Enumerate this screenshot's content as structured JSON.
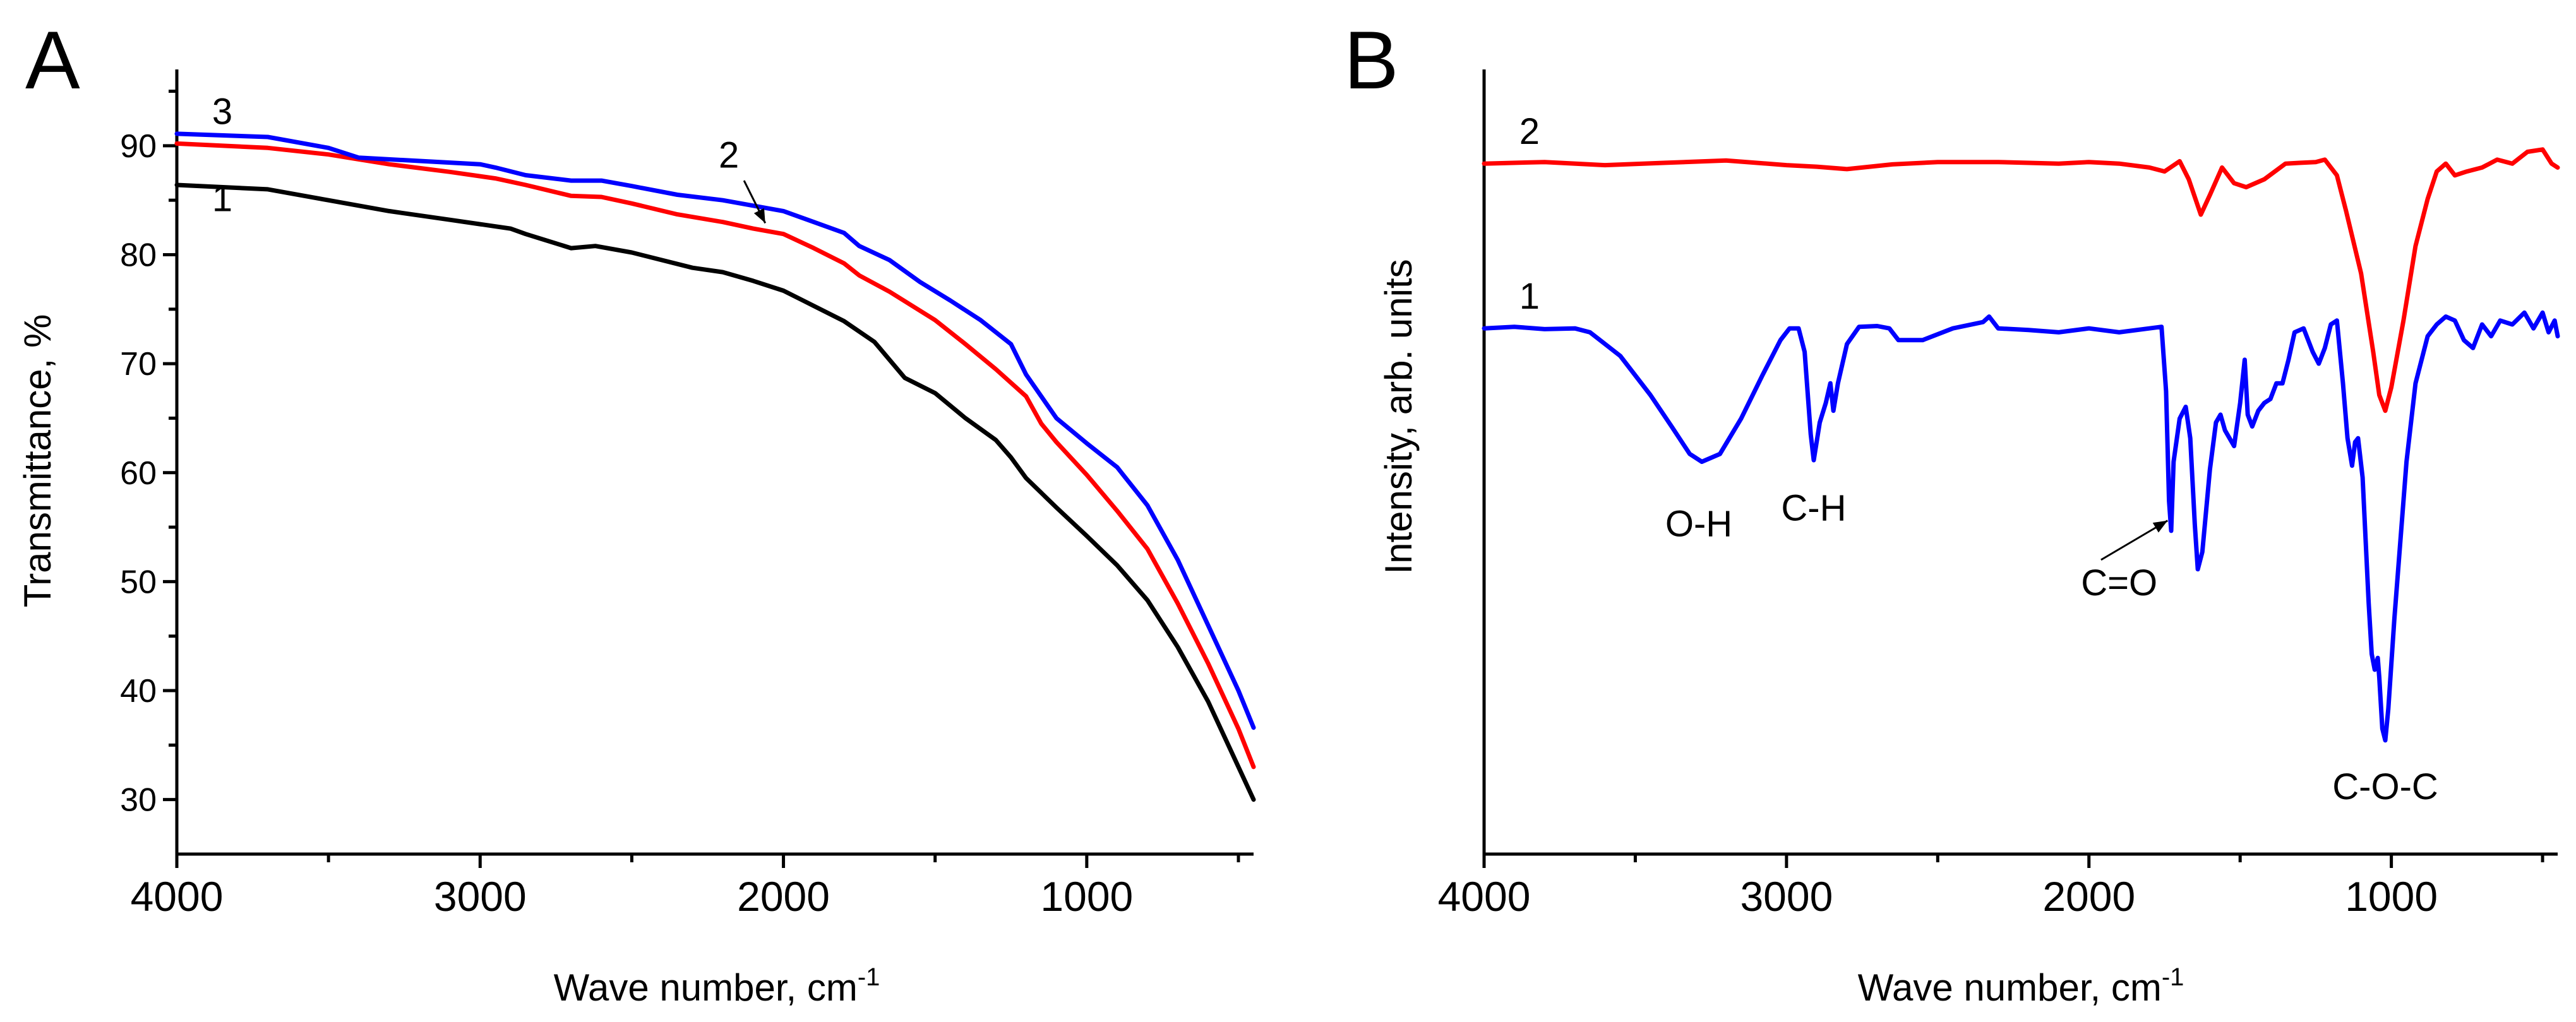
{
  "chart_data": [
    {
      "type": "line",
      "panel": "A",
      "title": "",
      "xlabel": "Wave number, cm",
      "xlabel_sup": "-1",
      "ylabel": "Transmittance, %",
      "xlim": [
        4000,
        450
      ],
      "ylim": [
        25,
        97
      ],
      "xticks": [
        4000,
        3000,
        2000,
        1000
      ],
      "yticks": [
        30,
        40,
        50,
        60,
        70,
        80,
        90
      ],
      "series": [
        {
          "name": "1",
          "color": "#000000",
          "points": [
            [
              4000,
              86.4
            ],
            [
              3700,
              86.0
            ],
            [
              3500,
              85.0
            ],
            [
              3300,
              84.0
            ],
            [
              3100,
              83.2
            ],
            [
              2900,
              82.4
            ],
            [
              2850,
              81.9
            ],
            [
              2700,
              80.6
            ],
            [
              2620,
              80.8
            ],
            [
              2500,
              80.2
            ],
            [
              2300,
              78.8
            ],
            [
              2200,
              78.4
            ],
            [
              2100,
              77.6
            ],
            [
              2000,
              76.7
            ],
            [
              1900,
              75.3
            ],
            [
              1800,
              73.9
            ],
            [
              1700,
              72.0
            ],
            [
              1600,
              68.7
            ],
            [
              1500,
              67.3
            ],
            [
              1400,
              65.0
            ],
            [
              1300,
              63.0
            ],
            [
              1250,
              61.4
            ],
            [
              1200,
              59.5
            ],
            [
              1100,
              56.8
            ],
            [
              1000,
              54.2
            ],
            [
              900,
              51.5
            ],
            [
              800,
              48.3
            ],
            [
              700,
              44.0
            ],
            [
              600,
              39.0
            ],
            [
              500,
              33.0
            ],
            [
              450,
              30.0
            ]
          ]
        },
        {
          "name": "2",
          "color": "#ff0000",
          "points": [
            [
              4000,
              90.2
            ],
            [
              3700,
              89.8
            ],
            [
              3500,
              89.2
            ],
            [
              3300,
              88.3
            ],
            [
              3100,
              87.6
            ],
            [
              2950,
              87.0
            ],
            [
              2850,
              86.4
            ],
            [
              2700,
              85.4
            ],
            [
              2600,
              85.3
            ],
            [
              2500,
              84.7
            ],
            [
              2350,
              83.7
            ],
            [
              2200,
              83.0
            ],
            [
              2100,
              82.4
            ],
            [
              2000,
              81.9
            ],
            [
              1900,
              80.6
            ],
            [
              1800,
              79.2
            ],
            [
              1750,
              78.1
            ],
            [
              1650,
              76.6
            ],
            [
              1500,
              74.0
            ],
            [
              1400,
              71.8
            ],
            [
              1300,
              69.5
            ],
            [
              1200,
              67.0
            ],
            [
              1150,
              64.5
            ],
            [
              1100,
              62.8
            ],
            [
              1000,
              59.8
            ],
            [
              900,
              56.5
            ],
            [
              800,
              53.0
            ],
            [
              700,
              48.0
            ],
            [
              600,
              42.5
            ],
            [
              500,
              36.5
            ],
            [
              450,
              33.0
            ]
          ]
        },
        {
          "name": "3",
          "color": "#0000ff",
          "points": [
            [
              4000,
              91.1
            ],
            [
              3700,
              90.8
            ],
            [
              3500,
              89.8
            ],
            [
              3400,
              88.9
            ],
            [
              3000,
              88.3
            ],
            [
              2950,
              88.0
            ],
            [
              2850,
              87.3
            ],
            [
              2700,
              86.8
            ],
            [
              2600,
              86.8
            ],
            [
              2500,
              86.3
            ],
            [
              2350,
              85.5
            ],
            [
              2200,
              85.0
            ],
            [
              2100,
              84.5
            ],
            [
              2000,
              84.0
            ],
            [
              1900,
              83.0
            ],
            [
              1800,
              82.0
            ],
            [
              1750,
              80.8
            ],
            [
              1650,
              79.5
            ],
            [
              1550,
              77.5
            ],
            [
              1450,
              75.8
            ],
            [
              1350,
              74.0
            ],
            [
              1250,
              71.8
            ],
            [
              1200,
              69.0
            ],
            [
              1150,
              67.0
            ],
            [
              1100,
              65.0
            ],
            [
              1000,
              62.7
            ],
            [
              900,
              60.5
            ],
            [
              800,
              57.0
            ],
            [
              700,
              52.0
            ],
            [
              600,
              46.0
            ],
            [
              500,
              40.0
            ],
            [
              450,
              36.6
            ]
          ]
        }
      ],
      "labels": [
        {
          "text": "1",
          "x": 3850,
          "y": 84.0
        },
        {
          "text": "2",
          "x": 2180,
          "y": 88.0
        },
        {
          "text": "3",
          "x": 3850,
          "y": 92.0
        }
      ],
      "arrows": [
        {
          "from": [
            2130,
            86.8
          ],
          "to": [
            2060,
            82.9
          ]
        }
      ]
    },
    {
      "type": "line",
      "panel": "B",
      "title": "",
      "xlabel": "Wave number, cm",
      "xlabel_sup": "-1",
      "ylabel": "Intensity, arb. units",
      "xlim": [
        4000,
        450
      ],
      "ylim": [
        0,
        100
      ],
      "xticks": [
        4000,
        3000,
        2000,
        1000
      ],
      "yticks": [],
      "series": [
        {
          "name": "2",
          "color": "#ff0000",
          "points": [
            [
              4000,
              88.0
            ],
            [
              3800,
              88.2
            ],
            [
              3600,
              87.8
            ],
            [
              3400,
              88.1
            ],
            [
              3200,
              88.4
            ],
            [
              3000,
              87.8
            ],
            [
              2900,
              87.6
            ],
            [
              2800,
              87.3
            ],
            [
              2650,
              87.9
            ],
            [
              2500,
              88.2
            ],
            [
              2300,
              88.2
            ],
            [
              2100,
              88.0
            ],
            [
              2000,
              88.2
            ],
            [
              1900,
              88.0
            ],
            [
              1800,
              87.5
            ],
            [
              1750,
              87.0
            ],
            [
              1700,
              88.3
            ],
            [
              1670,
              86.0
            ],
            [
              1630,
              81.5
            ],
            [
              1600,
              84.0
            ],
            [
              1560,
              87.5
            ],
            [
              1520,
              85.5
            ],
            [
              1480,
              85.0
            ],
            [
              1420,
              86.0
            ],
            [
              1350,
              88.0
            ],
            [
              1300,
              88.1
            ],
            [
              1250,
              88.2
            ],
            [
              1220,
              88.5
            ],
            [
              1180,
              86.5
            ],
            [
              1150,
              82.0
            ],
            [
              1100,
              74.0
            ],
            [
              1060,
              64.0
            ],
            [
              1040,
              58.5
            ],
            [
              1020,
              56.5
            ],
            [
              1000,
              59.5
            ],
            [
              960,
              68.0
            ],
            [
              920,
              77.5
            ],
            [
              880,
              83.5
            ],
            [
              850,
              87.0
            ],
            [
              820,
              88.0
            ],
            [
              790,
              86.5
            ],
            [
              750,
              87.0
            ],
            [
              700,
              87.5
            ],
            [
              650,
              88.5
            ],
            [
              600,
              88.0
            ],
            [
              550,
              89.5
            ],
            [
              500,
              89.8
            ],
            [
              470,
              88.0
            ],
            [
              450,
              87.5
            ]
          ]
        },
        {
          "name": "1",
          "color": "#0000ff",
          "points": [
            [
              4000,
              67.0
            ],
            [
              3900,
              67.2
            ],
            [
              3800,
              66.9
            ],
            [
              3700,
              67.0
            ],
            [
              3650,
              66.5
            ],
            [
              3550,
              63.5
            ],
            [
              3450,
              58.5
            ],
            [
              3380,
              54.5
            ],
            [
              3320,
              51.0
            ],
            [
              3280,
              50.0
            ],
            [
              3220,
              51.0
            ],
            [
              3150,
              55.5
            ],
            [
              3080,
              61.0
            ],
            [
              3020,
              65.5
            ],
            [
              2990,
              67.0
            ],
            [
              2960,
              67.0
            ],
            [
              2940,
              64.0
            ],
            [
              2920,
              53.5
            ],
            [
              2910,
              50.2
            ],
            [
              2890,
              55.0
            ],
            [
              2870,
              57.5
            ],
            [
              2855,
              60.0
            ],
            [
              2845,
              56.5
            ],
            [
              2830,
              60.0
            ],
            [
              2800,
              65.0
            ],
            [
              2760,
              67.2
            ],
            [
              2700,
              67.3
            ],
            [
              2660,
              67.0
            ],
            [
              2630,
              65.5
            ],
            [
              2550,
              65.5
            ],
            [
              2450,
              67.0
            ],
            [
              2350,
              67.8
            ],
            [
              2330,
              68.5
            ],
            [
              2300,
              67.0
            ],
            [
              2200,
              66.8
            ],
            [
              2100,
              66.5
            ],
            [
              2000,
              67.0
            ],
            [
              1900,
              66.5
            ],
            [
              1800,
              67.0
            ],
            [
              1760,
              67.2
            ],
            [
              1745,
              59.0
            ],
            [
              1735,
              45.0
            ],
            [
              1728,
              41.2
            ],
            [
              1720,
              50.0
            ],
            [
              1700,
              55.5
            ],
            [
              1680,
              57.0
            ],
            [
              1665,
              53.0
            ],
            [
              1650,
              42.0
            ],
            [
              1640,
              36.3
            ],
            [
              1625,
              38.5
            ],
            [
              1600,
              49.0
            ],
            [
              1580,
              55.0
            ],
            [
              1565,
              56.0
            ],
            [
              1550,
              54.0
            ],
            [
              1520,
              52.0
            ],
            [
              1500,
              57.5
            ],
            [
              1485,
              63.0
            ],
            [
              1475,
              56.0
            ],
            [
              1460,
              54.5
            ],
            [
              1440,
              56.5
            ],
            [
              1420,
              57.5
            ],
            [
              1400,
              58.0
            ],
            [
              1380,
              60.0
            ],
            [
              1360,
              60.0
            ],
            [
              1340,
              63.0
            ],
            [
              1320,
              66.5
            ],
            [
              1290,
              67.0
            ],
            [
              1260,
              64.0
            ],
            [
              1240,
              62.5
            ],
            [
              1220,
              64.5
            ],
            [
              1200,
              67.5
            ],
            [
              1180,
              68.0
            ],
            [
              1160,
              60.0
            ],
            [
              1145,
              53.0
            ],
            [
              1130,
              49.5
            ],
            [
              1120,
              52.5
            ],
            [
              1110,
              53.0
            ],
            [
              1095,
              48.0
            ],
            [
              1085,
              40.0
            ],
            [
              1075,
              32.0
            ],
            [
              1065,
              25.5
            ],
            [
              1055,
              23.5
            ],
            [
              1045,
              25.0
            ],
            [
              1040,
              22.5
            ],
            [
              1030,
              16.0
            ],
            [
              1020,
              14.5
            ],
            [
              1010,
              18.5
            ],
            [
              990,
              30.0
            ],
            [
              970,
              40.0
            ],
            [
              950,
              50.0
            ],
            [
              920,
              60.0
            ],
            [
              880,
              66.0
            ],
            [
              850,
              67.5
            ],
            [
              820,
              68.5
            ],
            [
              790,
              68.0
            ],
            [
              760,
              65.5
            ],
            [
              730,
              64.5
            ],
            [
              700,
              67.5
            ],
            [
              670,
              66.0
            ],
            [
              640,
              68.0
            ],
            [
              600,
              67.5
            ],
            [
              560,
              69.0
            ],
            [
              530,
              67.0
            ],
            [
              500,
              69.0
            ],
            [
              480,
              66.5
            ],
            [
              460,
              68.0
            ],
            [
              450,
              66.0
            ]
          ]
        }
      ],
      "labels": [
        {
          "text": "2",
          "x": 3850,
          "y": 90.5
        },
        {
          "text": "1",
          "x": 3850,
          "y": 69.5
        }
      ],
      "annotations": [
        {
          "text": "O-H",
          "x": 3290,
          "y": 40.5
        },
        {
          "text": "C-H",
          "x": 2910,
          "y": 42.5
        },
        {
          "text": "C=O",
          "x": 1900,
          "y": 33.0
        },
        {
          "text": "C-O-C",
          "x": 1020,
          "y": 7.0
        }
      ],
      "arrows": [
        {
          "from": [
            1960,
            37.5
          ],
          "to": [
            1740,
            42.5
          ]
        }
      ]
    }
  ]
}
